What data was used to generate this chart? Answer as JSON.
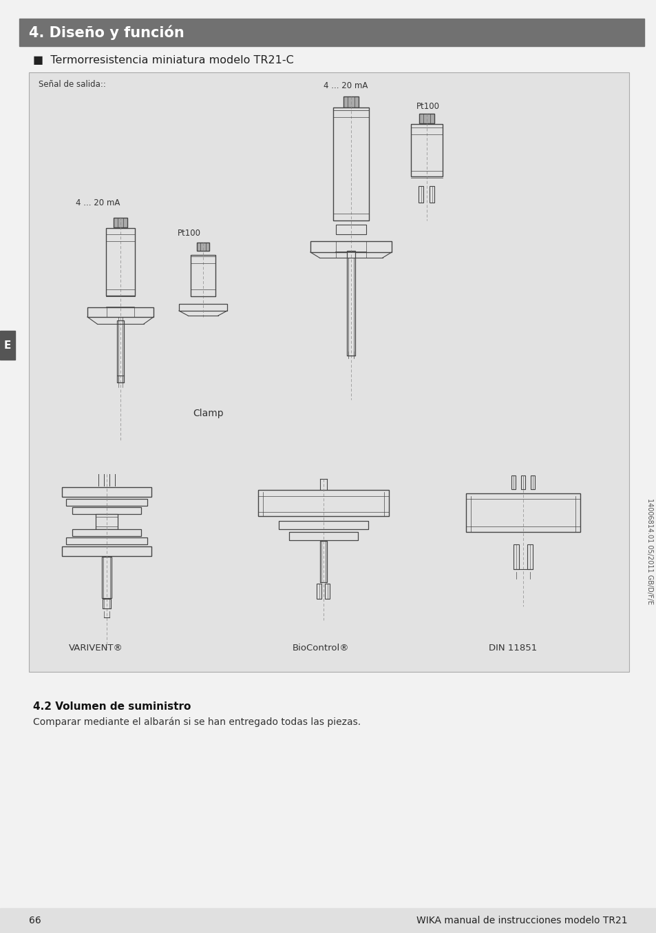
{
  "title": "4. Diseño y función",
  "title_bg": "#717171",
  "title_color": "#ffffff",
  "subtitle": "■  Termorresistencia miniatura modelo TR21-C",
  "diagram_bg": "#e2e2e2",
  "diagram_border": "#aaaaaa",
  "signal_label": "Señal de salida::",
  "label_4_20mA_left": "4 ... 20 mA",
  "label_pt100_left": "Pt100",
  "label_4_20mA_right": "4 ... 20 mA",
  "label_pt100_right": "Pt100",
  "label_clamp": "Clamp",
  "label_varivent": "VARIVENT®",
  "label_biocontrol": "BioControl®",
  "label_din": "DIN 11851",
  "section_title": "4.2 Volumen de suministro",
  "section_text": "Comparar mediante el albarán si se han entregado todas las piezas.",
  "page_num": "66",
  "page_footer": "WIKA manual de instrucciones modelo TR21",
  "sidebar_label": "E",
  "sidebar_bg": "#555555",
  "page_bg": "#f2f2f2",
  "footer_bg": "#e0e0e0",
  "rotate_text": "14006814.01 05/2011 GB/D/F/E",
  "line_color": "#444444",
  "body_fill": "#e2e2e2",
  "white_fill": "#f0f0f0"
}
